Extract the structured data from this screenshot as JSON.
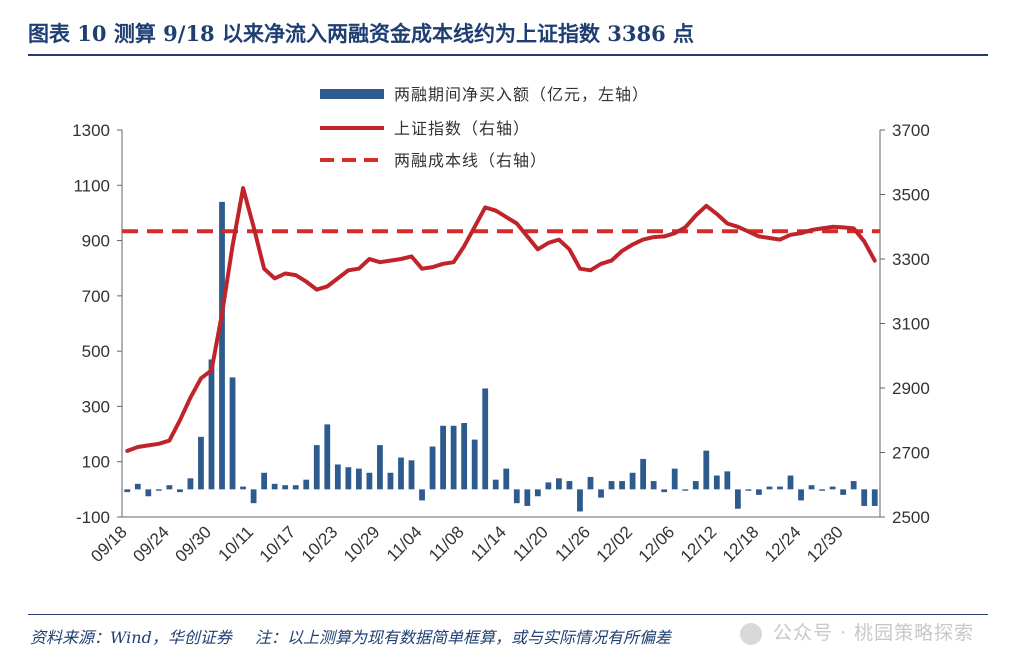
{
  "header": {
    "title": "图表 10   测算 9/18 以来净流入两融资金成本线约为上证指数 3386 点"
  },
  "footer": {
    "source": "资料来源：Wind，华创证券",
    "note": "注：以上测算为现有数据简单框算，或与实际情况有所偏差",
    "watermark": "公众号 · 桃园策略探索"
  },
  "chart_data": {
    "type": "bar+line",
    "legend": [
      {
        "label": "两融期间净买入额（亿元，左轴）",
        "color": "#2e5b8e",
        "kind": "bar"
      },
      {
        "label": "上证指数（右轴）",
        "color": "#c0242a",
        "kind": "line"
      },
      {
        "label": "两融成本线（右轴）",
        "color": "#d52b2b",
        "kind": "dashed"
      }
    ],
    "legend_position": "top-center",
    "x_tick_labels": [
      "09/18",
      "09/24",
      "09/30",
      "10/11",
      "10/17",
      "10/23",
      "10/29",
      "11/04",
      "11/08",
      "11/14",
      "11/20",
      "11/26",
      "12/02",
      "12/06",
      "12/12",
      "12/18",
      "12/24",
      "12/30"
    ],
    "left_axis": {
      "min": -100,
      "max": 1300,
      "ticks": [
        -100,
        100,
        300,
        500,
        700,
        900,
        1100,
        1300
      ]
    },
    "right_axis": {
      "min": 2500,
      "max": 3700,
      "ticks": [
        2500,
        2700,
        2900,
        3100,
        3300,
        3500,
        3700
      ]
    },
    "grid": false,
    "net_buy": [
      -10,
      20,
      -25,
      -5,
      15,
      -10,
      40,
      190,
      470,
      1040,
      405,
      10,
      -50,
      60,
      20,
      15,
      15,
      35,
      160,
      235,
      90,
      80,
      75,
      60,
      160,
      60,
      115,
      105,
      -40,
      155,
      230,
      230,
      240,
      180,
      365,
      35,
      75,
      -50,
      -60,
      -25,
      25,
      40,
      30,
      -80,
      45,
      -30,
      30,
      30,
      60,
      110,
      30,
      -10,
      75,
      -5,
      30,
      140,
      50,
      65,
      -70,
      -5,
      -20,
      10,
      10,
      50,
      -40,
      15,
      -5,
      10,
      -20,
      30,
      -60,
      -60
    ],
    "sse_index": [
      2705,
      2717,
      2722,
      2727,
      2737,
      2800,
      2870,
      2930,
      2955,
      3130,
      3340,
      3520,
      3400,
      3270,
      3240,
      3255,
      3250,
      3230,
      3205,
      3215,
      3240,
      3265,
      3270,
      3300,
      3290,
      3295,
      3300,
      3308,
      3270,
      3275,
      3285,
      3290,
      3340,
      3400,
      3460,
      3450,
      3430,
      3410,
      3370,
      3330,
      3350,
      3360,
      3330,
      3270,
      3265,
      3285,
      3295,
      3325,
      3345,
      3360,
      3368,
      3370,
      3380,
      3398,
      3435,
      3465,
      3440,
      3410,
      3400,
      3385,
      3370,
      3365,
      3360,
      3375,
      3380,
      3390,
      3395,
      3400,
      3398,
      3395,
      3355,
      3295
    ],
    "cost_line": 3386
  }
}
